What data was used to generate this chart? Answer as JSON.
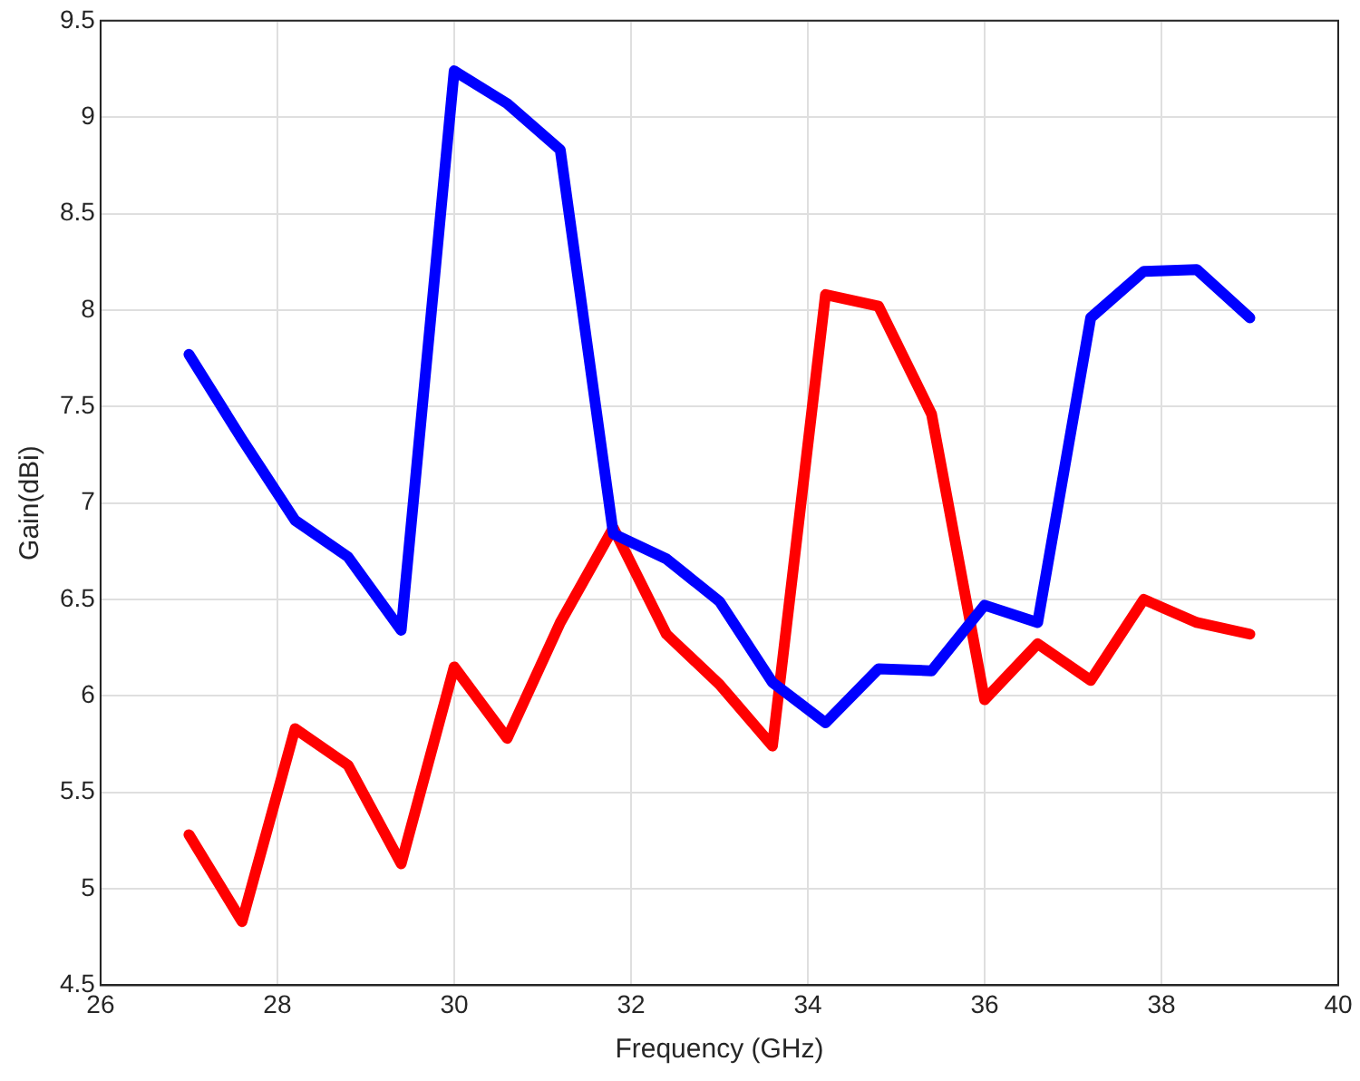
{
  "chart_data": {
    "type": "line",
    "xlabel": "Frequency (GHz)",
    "ylabel": "Gain(dBi)",
    "x": [
      27,
      27.6,
      28.2,
      28.8,
      29.4,
      30,
      30.6,
      31.2,
      31.8,
      32.4,
      33,
      33.6,
      34.2,
      34.8,
      35.4,
      36,
      36.6,
      37.2,
      37.8,
      38.4,
      39
    ],
    "series": [
      {
        "color": "#0000ff",
        "values": [
          7.77,
          7.33,
          6.91,
          6.72,
          6.34,
          9.24,
          9.07,
          8.83,
          6.84,
          6.71,
          6.49,
          6.07,
          5.86,
          6.14,
          6.13,
          6.47,
          6.38,
          7.96,
          8.2,
          8.21,
          7.96
        ]
      },
      {
        "color": "#ff0000",
        "values": [
          5.28,
          4.83,
          5.83,
          5.64,
          5.13,
          6.15,
          5.78,
          6.38,
          6.87,
          6.32,
          6.06,
          5.74,
          8.08,
          8.02,
          7.46,
          5.98,
          6.27,
          6.08,
          6.5,
          6.38,
          6.32
        ]
      }
    ],
    "xlim": [
      26,
      40
    ],
    "xticks": [
      26,
      28,
      30,
      32,
      34,
      36,
      38,
      40
    ],
    "ylim": [
      4.5,
      9.5
    ],
    "yticks": [
      4.5,
      5,
      5.5,
      6,
      6.5,
      7,
      7.5,
      8,
      8.5,
      9,
      9.5
    ],
    "grid": true,
    "legend": false,
    "marker": "none",
    "line_style": "solid"
  }
}
